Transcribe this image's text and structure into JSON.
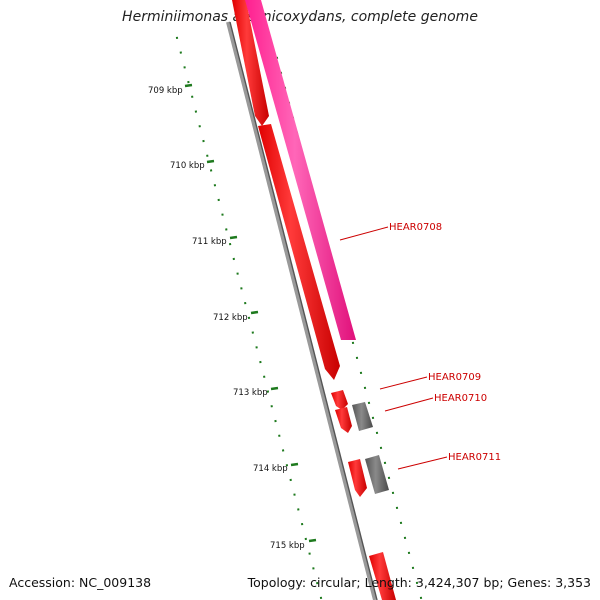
{
  "title": "Herminiimonas arsenicoxydans, complete genome",
  "accession": "Accession: NC_009138",
  "summary": "Topology: circular; Length: 3,424,307 bp; Genes: 3,353",
  "kbp_labels": [
    "709 kbp",
    "710 kbp",
    "711 kbp",
    "712 kbp",
    "713 kbp",
    "714 kbp",
    "715 kbp"
  ],
  "gene_labels": [
    "HEAR0708",
    "HEAR0709",
    "HEAR0710",
    "HEAR0711"
  ],
  "colors": {
    "cds": "#ff0000",
    "rna": "#ff3399",
    "other": "#666666",
    "backbone": "#888888",
    "ticks": "#1e7a1e",
    "label": "#cc0000"
  }
}
